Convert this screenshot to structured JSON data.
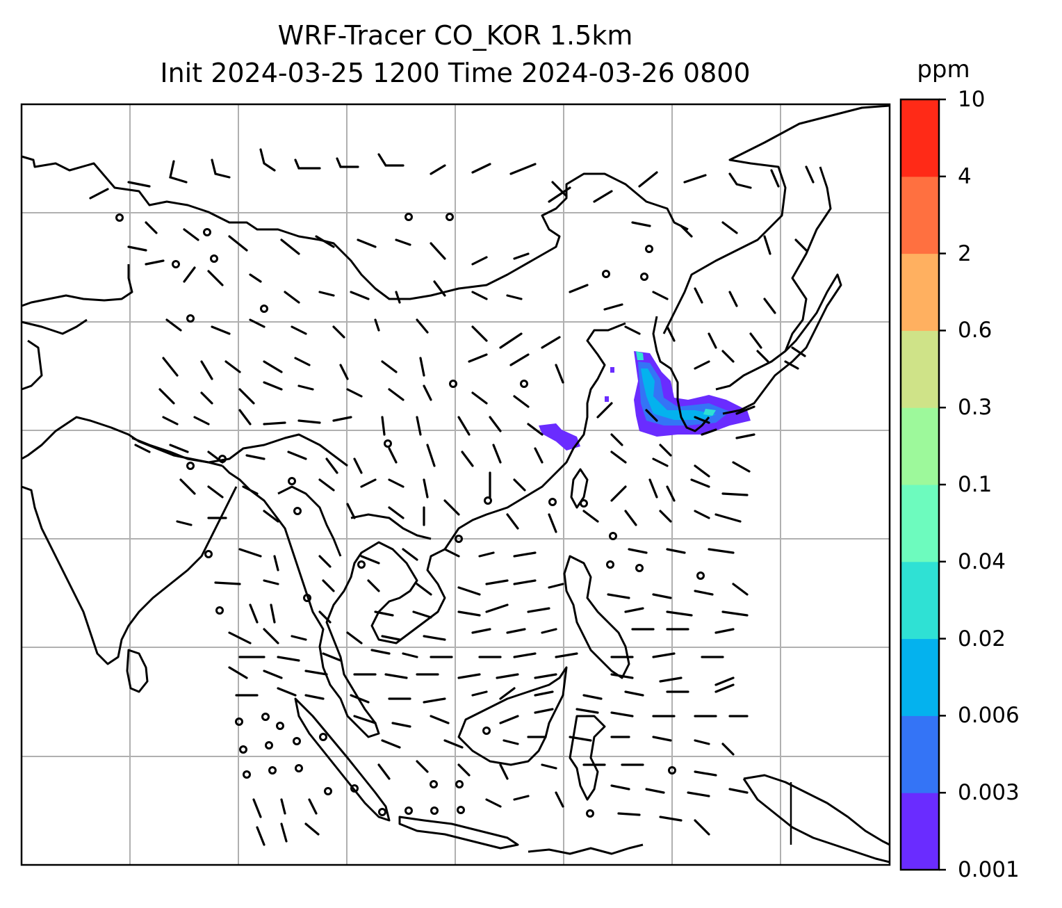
{
  "title": {
    "line1": "WRF-Tracer CO_KOR 1.5km",
    "line2": "Init 2024-03-25 1200 Time 2024-03-26 0800"
  },
  "colorbar": {
    "units": "ppm",
    "levels": [
      "0.001",
      "0.003",
      "0.006",
      "0.02",
      "0.04",
      "0.1",
      "0.3",
      "0.6",
      "2",
      "4",
      "10"
    ],
    "colors": [
      "#6a2cff",
      "#3474f6",
      "#04b2ee",
      "#2fe1d4",
      "#6dfbbe",
      "#9df99b",
      "#cfe388",
      "#ffb060",
      "#ff7040",
      "#ff2a17"
    ]
  },
  "map": {
    "frame_color": "#000000",
    "grid_color": "#b0b0b0",
    "coastline_color": "#000000",
    "wind_barb_color": "#000000"
  }
}
